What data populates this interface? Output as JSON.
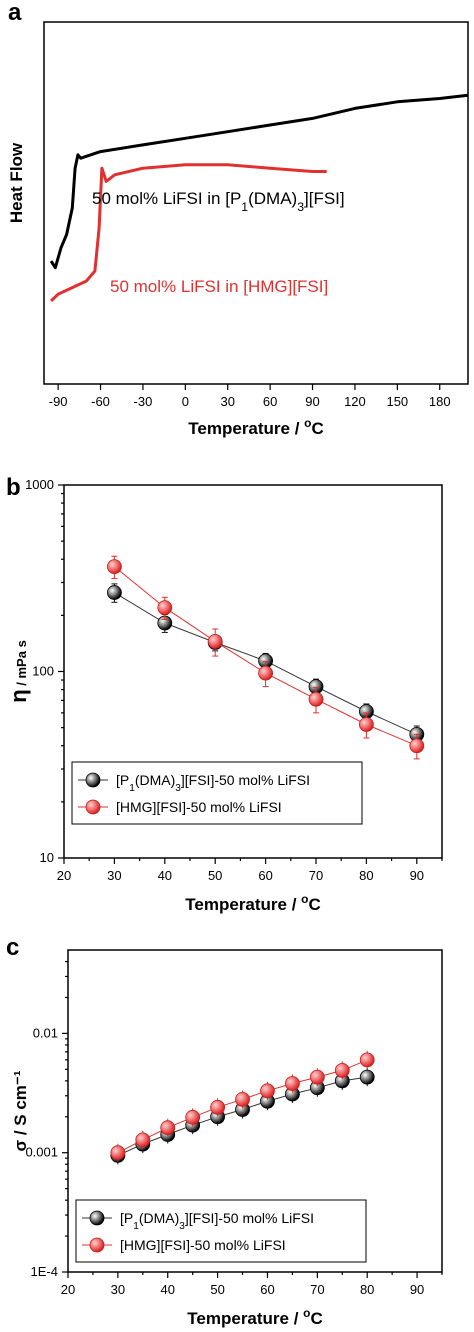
{
  "chart_data": [
    {
      "type": "line",
      "panel": "a",
      "xlabel": "Temperature / °C",
      "ylabel": "Heat Flow",
      "xlim": [
        -100,
        200
      ],
      "xticks": [
        -90,
        -60,
        -30,
        0,
        30,
        60,
        90,
        120,
        150,
        180
      ],
      "annotations": [
        {
          "text": "50 mol% LiFSI in [P1(DMA)3][FSI]",
          "color": "#000000"
        },
        {
          "text": "50 mol% LiFSI in [HMG][FSI]",
          "color": "#e03030"
        }
      ],
      "series": [
        {
          "color": "#000000",
          "x": [
            -95,
            -92,
            -88,
            -84,
            -80,
            -78,
            -76,
            -74,
            -60,
            -30,
            0,
            30,
            60,
            90,
            120,
            150,
            180,
            200
          ],
          "y": [
            0.1,
            0.08,
            0.14,
            0.18,
            0.26,
            0.38,
            0.42,
            0.41,
            0.43,
            0.45,
            0.47,
            0.49,
            0.51,
            0.53,
            0.56,
            0.58,
            0.59,
            0.6
          ]
        },
        {
          "color": "#e03030",
          "x": [
            -95,
            -90,
            -80,
            -70,
            -64,
            -61,
            -59,
            -56,
            -50,
            -30,
            0,
            30,
            60,
            90,
            100
          ],
          "y": [
            -0.02,
            0.0,
            0.02,
            0.04,
            0.07,
            0.2,
            0.38,
            0.34,
            0.36,
            0.38,
            0.39,
            0.39,
            0.38,
            0.37,
            0.37
          ]
        }
      ]
    },
    {
      "type": "line",
      "panel": "b",
      "xlabel": "Temperature / °C",
      "ylabel_symbol": "η",
      "ylabel_unit": " / mPa s",
      "xlim": [
        20,
        95
      ],
      "ylim": [
        10,
        1000
      ],
      "yscale": "log",
      "xticks": [
        20,
        30,
        40,
        50,
        60,
        70,
        80,
        90
      ],
      "yticks": [
        10,
        100,
        1000
      ],
      "legend": "bottom-left",
      "series": [
        {
          "name": "[P1(DMA)3][FSI]-50 mol% LiFSI",
          "color": "#111111",
          "x": [
            30,
            40,
            50,
            60,
            70,
            80,
            90
          ],
          "y": [
            265,
            182,
            143,
            114,
            83,
            61,
            46
          ],
          "err": [
            30,
            20,
            14,
            11,
            8,
            6,
            5
          ]
        },
        {
          "name": "[HMG][FSI]-50 mol% LiFSI",
          "color": "#e03030",
          "x": [
            30,
            40,
            50,
            60,
            70,
            80,
            90
          ],
          "y": [
            365,
            220,
            145,
            98,
            71,
            52,
            40
          ],
          "err": [
            50,
            30,
            24,
            15,
            11,
            8,
            6
          ]
        }
      ]
    },
    {
      "type": "line",
      "panel": "c",
      "xlabel": "Temperature / °C",
      "ylabel": "σ / S cm⁻¹",
      "xlim": [
        20,
        95
      ],
      "ylim": [
        0.0001,
        0.05
      ],
      "yscale": "log",
      "xticks": [
        20,
        30,
        40,
        50,
        60,
        70,
        80,
        90
      ],
      "yticks": [
        0.0001,
        0.001,
        0.01
      ],
      "ytick_labels": [
        "1E-4",
        "0.001",
        "0.01"
      ],
      "legend": "bottom-left",
      "series": [
        {
          "name": "[P1(DMA)3][FSI]-50 mol% LiFSI",
          "color": "#111111",
          "x": [
            30,
            35,
            40,
            45,
            50,
            55,
            60,
            65,
            70,
            75,
            80
          ],
          "y": [
            0.00095,
            0.00118,
            0.00142,
            0.0017,
            0.002,
            0.0023,
            0.0027,
            0.0031,
            0.0035,
            0.004,
            0.0043
          ]
        },
        {
          "name": "[HMG][FSI]-50 mol% LiFSI",
          "color": "#e03030",
          "x": [
            30,
            35,
            40,
            45,
            50,
            55,
            60,
            65,
            70,
            75,
            80
          ],
          "y": [
            0.001,
            0.00128,
            0.00162,
            0.00198,
            0.0024,
            0.0028,
            0.0033,
            0.0038,
            0.0043,
            0.0049,
            0.006
          ]
        }
      ]
    }
  ]
}
